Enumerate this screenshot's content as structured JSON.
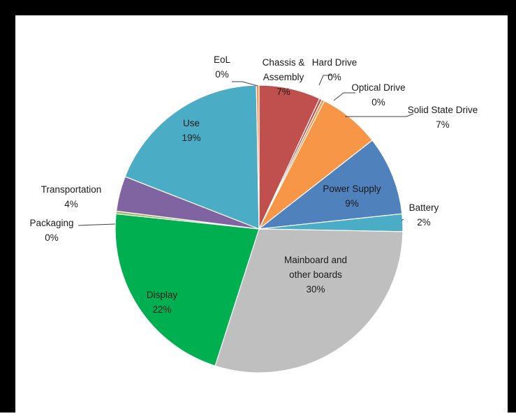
{
  "chart_data": {
    "type": "pie",
    "title": "",
    "slices": [
      {
        "label_lines": [
          "Chassis &",
          "Assembly"
        ],
        "pct_label": "7%",
        "value": 7,
        "color": "#c0504d"
      },
      {
        "label_lines": [
          "Hard Drive"
        ],
        "pct_label": "0%",
        "value": 0.3,
        "color": "#c0504d"
      },
      {
        "label_lines": [
          "Optical Drive"
        ],
        "pct_label": "0%",
        "value": 0.3,
        "color": "#f79646"
      },
      {
        "label_lines": [
          "Solid State Drive"
        ],
        "pct_label": "7%",
        "value": 7,
        "color": "#f79646"
      },
      {
        "label_lines": [
          "Power Supply"
        ],
        "pct_label": "9%",
        "value": 9,
        "color": "#4f81bd"
      },
      {
        "label_lines": [
          "Battery"
        ],
        "pct_label": "2%",
        "value": 2,
        "color": "#4bacc6"
      },
      {
        "label_lines": [
          "Mainboard and",
          "other boards"
        ],
        "pct_label": "30%",
        "value": 30,
        "color": "#bfbfbf"
      },
      {
        "label_lines": [
          "Display"
        ],
        "pct_label": "22%",
        "value": 22,
        "color": "#00b050"
      },
      {
        "label_lines": [
          "Packaging"
        ],
        "pct_label": "0%",
        "value": 0.3,
        "color": "#9bbb59"
      },
      {
        "label_lines": [
          "Transportation"
        ],
        "pct_label": "4%",
        "value": 4,
        "color": "#8064a2"
      },
      {
        "label_lines": [
          "Use"
        ],
        "pct_label": "19%",
        "value": 19,
        "color": "#4bacc6"
      },
      {
        "label_lines": [
          "EoL"
        ],
        "pct_label": "0%",
        "value": 0.3,
        "color": "#f79646"
      }
    ]
  }
}
